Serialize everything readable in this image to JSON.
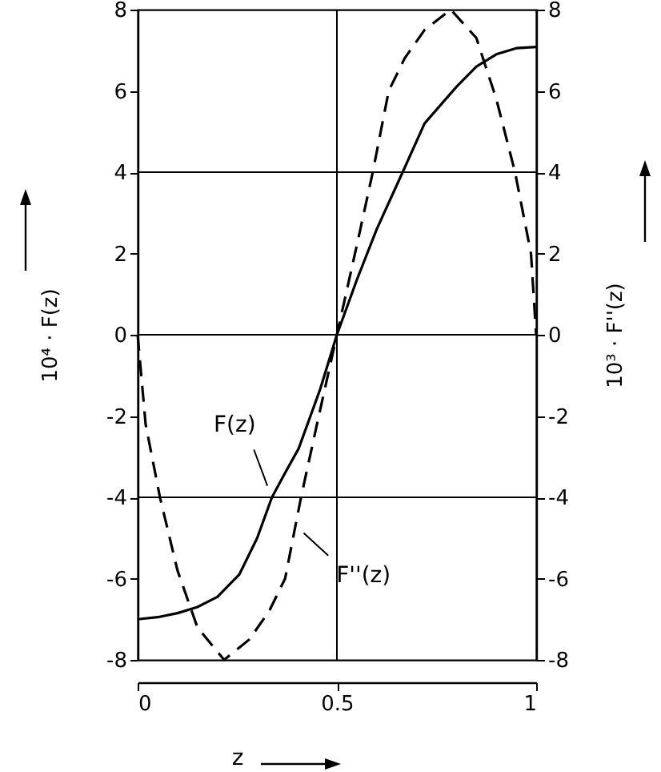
{
  "chart_data": {
    "type": "line",
    "xlabel": "z",
    "ylabel": "10⁴ · F(z)",
    "y2label": "10³ · F''(z)",
    "series": [
      {
        "color": "#000000",
        "line_style": "solid",
        "x": [
          0,
          0.05,
          0.1,
          0.15,
          0.2,
          0.255,
          0.3,
          0.337,
          0.37,
          0.404,
          0.43,
          0.458,
          0.5,
          0.55,
          0.6,
          0.665,
          0.72,
          0.8,
          0.85,
          0.9,
          0.95,
          1
        ],
        "values": [
          -7,
          -6.95,
          -6.85,
          -6.7,
          -6.45,
          -5.9,
          -5.0,
          -4,
          -3.4,
          -2.8,
          -2.1,
          -1.34,
          0,
          1.35,
          2.6,
          4,
          5.2,
          6.1,
          6.6,
          6.9,
          7.05,
          7.08
        ]
      },
      {
        "color": "#000000",
        "line_style": "dashed",
        "axis": "y2",
        "x": [
          0,
          0.02,
          0.056,
          0.1,
          0.15,
          0.217,
          0.28,
          0.33,
          0.37,
          0.41,
          0.45,
          0.5,
          0.55,
          0.59,
          0.63,
          0.67,
          0.72,
          0.786,
          0.85,
          0.9,
          0.947,
          0.987,
          1
        ],
        "values": [
          0,
          -2.2,
          -4,
          -5.8,
          -7.2,
          -8,
          -7.5,
          -6.8,
          -6,
          -4,
          -2.2,
          0,
          2.2,
          4,
          6,
          6.8,
          7.5,
          8,
          7.3,
          5.8,
          4,
          2,
          0
        ]
      }
    ],
    "annotations": [
      {
        "text": "F(z)",
        "x": 0.34,
        "y": -4
      },
      {
        "text": "F''(z)",
        "x": 0.39,
        "y": -4.7
      }
    ],
    "xlim": [
      0,
      1
    ],
    "xticks": [
      0,
      0.5,
      1
    ],
    "ylim": [
      -8,
      8
    ],
    "yticks": [
      -8,
      -6,
      -4,
      -2,
      0,
      2,
      4,
      6,
      8
    ],
    "y2lim": [
      -8,
      8
    ],
    "y2ticks": [
      -8,
      -6,
      -4,
      -2,
      0,
      2,
      4,
      6,
      8
    ],
    "ref_lines": [
      {
        "axis": "y",
        "value": 4
      },
      {
        "axis": "y",
        "value": 0
      },
      {
        "axis": "y",
        "value": -4
      },
      {
        "axis": "x",
        "value": 0.5
      }
    ]
  }
}
